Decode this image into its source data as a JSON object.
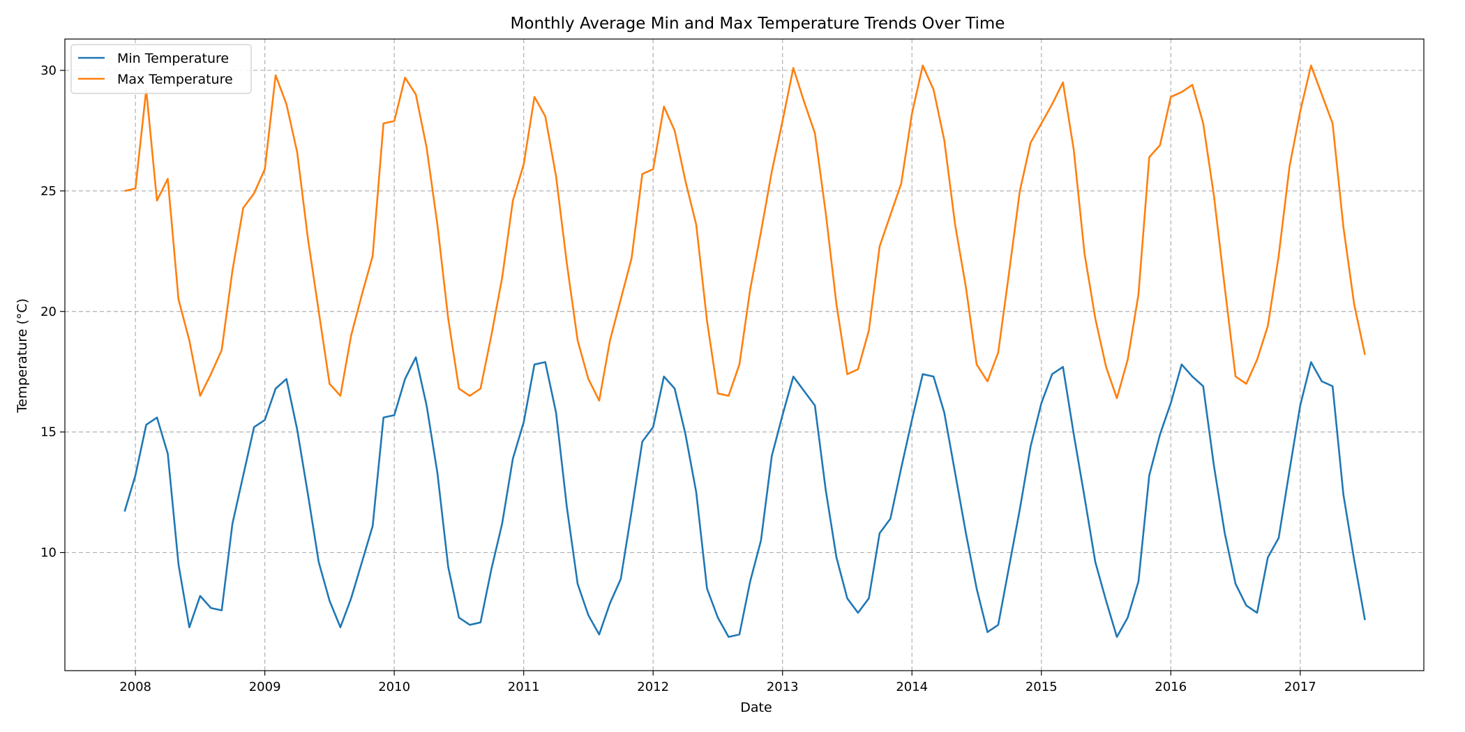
{
  "chart_data": {
    "type": "line",
    "title": "Monthly Average Min and Max Temperature Trends Over Time",
    "xlabel": "Date",
    "ylabel": "Temperature (°C)",
    "xlim": [
      "2007-06-15",
      "2017-12-15"
    ],
    "ylim": [
      5.1,
      31.3
    ],
    "x_ticks": [
      "2008",
      "2009",
      "2010",
      "2011",
      "2012",
      "2013",
      "2014",
      "2015",
      "2016",
      "2017"
    ],
    "y_ticks": [
      10,
      15,
      20,
      25,
      30
    ],
    "grid": true,
    "legend_position": "top-left",
    "start_month": "2007-12",
    "series": [
      {
        "name": "Min Temperature",
        "color": "#1f77b4",
        "values": [
          11.7,
          13.2,
          15.3,
          15.6,
          14.1,
          9.5,
          6.9,
          8.2,
          7.7,
          7.6,
          11.2,
          13.2,
          15.2,
          15.5,
          16.8,
          17.2,
          15.1,
          12.4,
          9.6,
          8.0,
          6.9,
          8.1,
          9.6,
          11.1,
          15.6,
          15.7,
          17.2,
          18.1,
          16.1,
          13.3,
          9.4,
          7.3,
          7.0,
          7.1,
          9.3,
          11.2,
          13.9,
          15.4,
          17.8,
          17.9,
          15.8,
          11.9,
          8.7,
          7.4,
          6.6,
          7.9,
          8.9,
          11.7,
          14.6,
          15.2,
          17.3,
          16.8,
          14.9,
          12.5,
          8.5,
          7.3,
          6.5,
          6.6,
          8.8,
          10.5,
          14.0,
          15.7,
          17.3,
          16.7,
          16.1,
          12.6,
          9.8,
          8.1,
          7.5,
          8.1,
          10.8,
          11.4,
          13.5,
          15.5,
          17.4,
          17.3,
          15.8,
          13.3,
          10.8,
          8.5,
          6.7,
          7.0,
          9.4,
          11.8,
          14.4,
          16.2,
          17.4,
          17.7,
          14.9,
          12.3,
          9.6,
          8.0,
          6.5,
          7.3,
          8.8,
          13.2,
          14.9,
          16.2,
          17.8,
          17.3,
          16.9,
          13.6,
          10.8,
          8.7,
          7.8,
          7.5,
          9.8,
          10.6,
          13.4,
          16.1,
          17.9,
          17.1,
          16.9,
          12.4,
          9.7,
          7.2
        ]
      },
      {
        "name": "Max Temperature",
        "color": "#ff7f0e",
        "values": [
          25.0,
          25.1,
          29.2,
          24.6,
          25.5,
          20.5,
          18.8,
          16.5,
          17.4,
          18.4,
          21.7,
          24.3,
          24.9,
          25.9,
          29.8,
          28.6,
          26.6,
          23.0,
          20.0,
          17.0,
          16.5,
          19.0,
          20.7,
          22.3,
          27.8,
          27.9,
          29.7,
          29.0,
          26.8,
          23.6,
          19.7,
          16.8,
          16.5,
          16.8,
          19.0,
          21.4,
          24.6,
          26.1,
          28.9,
          28.1,
          25.6,
          22.0,
          18.8,
          17.2,
          16.3,
          18.8,
          20.5,
          22.2,
          25.7,
          25.9,
          28.5,
          27.5,
          25.4,
          23.6,
          19.6,
          16.6,
          16.5,
          17.8,
          20.9,
          23.3,
          25.8,
          27.9,
          30.1,
          28.7,
          27.4,
          24.1,
          20.3,
          17.4,
          17.6,
          19.2,
          22.7,
          24.0,
          25.3,
          28.2,
          30.2,
          29.2,
          27.1,
          23.6,
          21.0,
          17.8,
          17.1,
          18.3,
          21.6,
          25.0,
          27.0,
          27.8,
          28.6,
          29.5,
          26.7,
          22.4,
          19.7,
          17.7,
          16.4,
          18.0,
          20.7,
          26.4,
          26.9,
          28.9,
          29.1,
          29.4,
          27.8,
          24.8,
          21.0,
          17.3,
          17.0,
          18.0,
          19.4,
          22.3,
          26.0,
          28.3,
          30.2,
          29.0,
          27.8,
          23.5,
          20.3,
          18.2
        ]
      }
    ]
  }
}
